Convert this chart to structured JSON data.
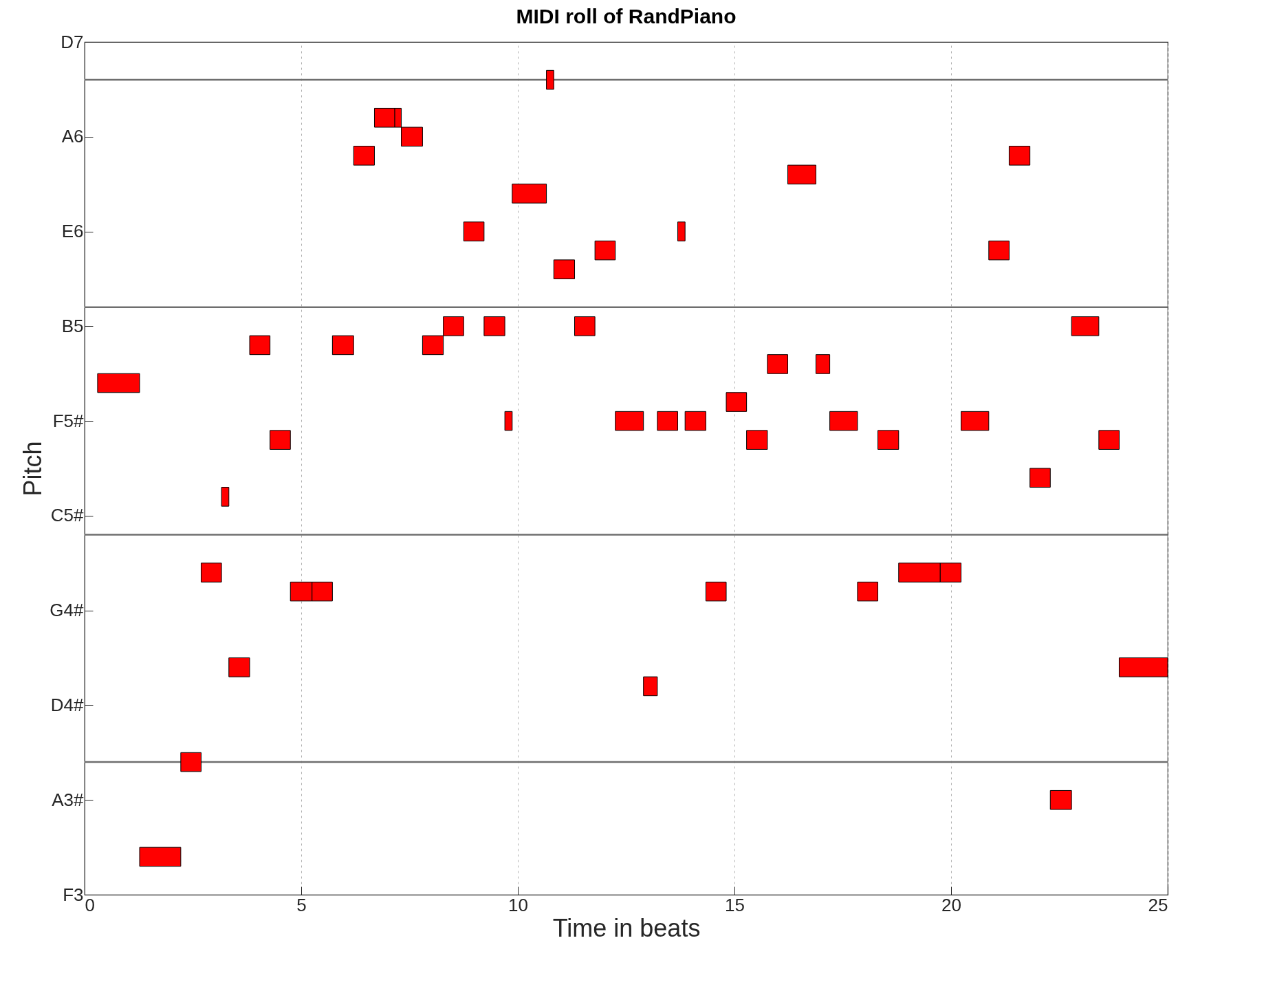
{
  "chart_data": {
    "type": "bar",
    "orientation": "horizontal",
    "title": "MIDI roll of RandPiano",
    "xlabel": "Time in beats",
    "ylabel": "Pitch",
    "categories": [
      "D7",
      null,
      null,
      null,
      null,
      "A6",
      null,
      null,
      null,
      null,
      "E6",
      null,
      null,
      null,
      null,
      "B5",
      null,
      null,
      null,
      null,
      "F5#",
      null,
      null,
      null,
      null,
      "C5#",
      null,
      null,
      null,
      null,
      "G4#",
      null,
      null,
      null,
      null,
      "D4#",
      null,
      null,
      null,
      null,
      "A3#",
      null,
      null,
      null,
      null,
      "F3"
    ],
    "series": [
      {
        "color": "#ff0000",
        "base": [
          null,
          null,
          10.66,
          null,
          6.69,
          7.31,
          6.21,
          16.23,
          9.87,
          null,
          8.75,
          11.78,
          10.83,
          null,
          null,
          8.28,
          3.81,
          15.76,
          0.3,
          14.81,
          9.7,
          4.28,
          null,
          21.82,
          3.16,
          null,
          null,
          null,
          2.69,
          4.75,
          null,
          null,
          null,
          3.33,
          12.9,
          null,
          null,
          null,
          2.22,
          null,
          22.29,
          null,
          null,
          1.27,
          null,
          null
        ],
        "values": [
          null,
          null,
          0.17,
          null,
          0.47,
          0.49,
          0.48,
          0.65,
          0.79,
          null,
          0.47,
          0.47,
          0.48,
          null,
          null,
          0.47,
          0.47,
          0.47,
          0.97,
          0.47,
          0.17,
          0.47,
          null,
          0.47,
          0.17,
          null,
          null,
          null,
          0.47,
          0.5,
          null,
          null,
          null,
          0.48,
          0.32,
          null,
          null,
          null,
          0.47,
          null,
          0.49,
          null,
          null,
          0.95,
          null,
          null
        ]
      },
      {
        "color": "#ff0000",
        "base": [
          null,
          null,
          null,
          null,
          7.16,
          null,
          21.34,
          null,
          null,
          null,
          13.69,
          20.87,
          null,
          null,
          null,
          9.22,
          5.72,
          16.88,
          null,
          null,
          12.25,
          15.28,
          null,
          null,
          null,
          null,
          null,
          null,
          18.79,
          5.25,
          null,
          null,
          null,
          23.88,
          null,
          null,
          null,
          null,
          null,
          null,
          null,
          null,
          null,
          null,
          null,
          null
        ],
        "values": [
          null,
          null,
          null,
          null,
          0.15,
          null,
          0.48,
          null,
          null,
          null,
          0.17,
          0.47,
          null,
          null,
          null,
          0.48,
          0.49,
          0.32,
          null,
          null,
          0.65,
          0.48,
          null,
          null,
          null,
          null,
          null,
          null,
          0.96,
          0.47,
          null,
          null,
          null,
          1.12,
          null,
          null,
          null,
          null,
          null,
          null,
          null,
          null,
          null,
          null,
          null,
          null
        ]
      },
      {
        "color": "#ff0000",
        "base": [
          null,
          null,
          null,
          null,
          null,
          null,
          null,
          null,
          null,
          null,
          null,
          null,
          null,
          null,
          null,
          11.31,
          7.8,
          null,
          null,
          null,
          13.22,
          18.31,
          null,
          null,
          null,
          null,
          null,
          null,
          19.75,
          14.34,
          null,
          null,
          null,
          null,
          null,
          null,
          null,
          null,
          null,
          null,
          null,
          null,
          null,
          null,
          null,
          null
        ],
        "values": [
          null,
          null,
          null,
          null,
          null,
          null,
          null,
          null,
          null,
          null,
          null,
          null,
          null,
          null,
          null,
          0.47,
          0.48,
          null,
          null,
          null,
          0.47,
          0.48,
          null,
          null,
          null,
          null,
          null,
          null,
          0.48,
          0.47,
          null,
          null,
          null,
          null,
          null,
          null,
          null,
          null,
          null,
          null,
          null,
          null,
          null,
          null,
          null,
          null
        ]
      },
      {
        "color": "#ff0000",
        "base": [
          null,
          null,
          null,
          null,
          null,
          null,
          null,
          null,
          null,
          null,
          null,
          null,
          null,
          null,
          null,
          22.78,
          null,
          null,
          null,
          null,
          13.86,
          23.41,
          null,
          null,
          null,
          null,
          null,
          null,
          null,
          17.84,
          null,
          null,
          null,
          null,
          null,
          null,
          null,
          null,
          null,
          null,
          null,
          null,
          null,
          null,
          null,
          null
        ],
        "values": [
          null,
          null,
          null,
          null,
          null,
          null,
          null,
          null,
          null,
          null,
          null,
          null,
          null,
          null,
          null,
          0.63,
          null,
          null,
          null,
          null,
          0.48,
          0.47,
          null,
          null,
          null,
          null,
          null,
          null,
          null,
          0.47,
          null,
          null,
          null,
          null,
          null,
          null,
          null,
          null,
          null,
          null,
          null,
          null,
          null,
          null,
          null,
          null
        ]
      },
      {
        "color": "#ff0000",
        "base": [
          null,
          null,
          null,
          null,
          null,
          null,
          null,
          null,
          null,
          null,
          null,
          null,
          null,
          null,
          null,
          null,
          null,
          null,
          null,
          null,
          17.2,
          null,
          null,
          null,
          null,
          null,
          null,
          null,
          null,
          null,
          null,
          null,
          null,
          null,
          null,
          null,
          null,
          null,
          null,
          null,
          null,
          null,
          null,
          null,
          null,
          null
        ],
        "values": [
          null,
          null,
          null,
          null,
          null,
          null,
          null,
          null,
          null,
          null,
          null,
          null,
          null,
          null,
          null,
          null,
          null,
          null,
          null,
          null,
          0.64,
          null,
          null,
          null,
          null,
          null,
          null,
          null,
          null,
          null,
          null,
          null,
          null,
          null,
          null,
          null,
          null,
          null,
          null,
          null,
          null,
          null,
          null,
          null,
          null,
          null
        ]
      },
      {
        "color": "#ff0000",
        "base": [
          null,
          null,
          null,
          null,
          null,
          null,
          null,
          null,
          null,
          null,
          null,
          null,
          null,
          null,
          null,
          null,
          null,
          null,
          null,
          null,
          20.23,
          null,
          null,
          null,
          null,
          null,
          null,
          null,
          null,
          null,
          null,
          null,
          null,
          null,
          null,
          null,
          null,
          null,
          null,
          null,
          null,
          null,
          null,
          null,
          null,
          null
        ],
        "values": [
          null,
          null,
          null,
          null,
          null,
          null,
          null,
          null,
          null,
          null,
          null,
          null,
          null,
          null,
          null,
          null,
          null,
          null,
          null,
          null,
          0.64,
          null,
          null,
          null,
          null,
          null,
          null,
          null,
          null,
          null,
          null,
          null,
          null,
          null,
          null,
          null,
          null,
          null,
          null,
          null,
          null,
          null,
          null,
          null,
          null,
          null
        ]
      }
    ],
    "xlim": [
      0,
      25
    ],
    "xticks": [
      0,
      5,
      10,
      15,
      20,
      25
    ],
    "grid": "x"
  }
}
